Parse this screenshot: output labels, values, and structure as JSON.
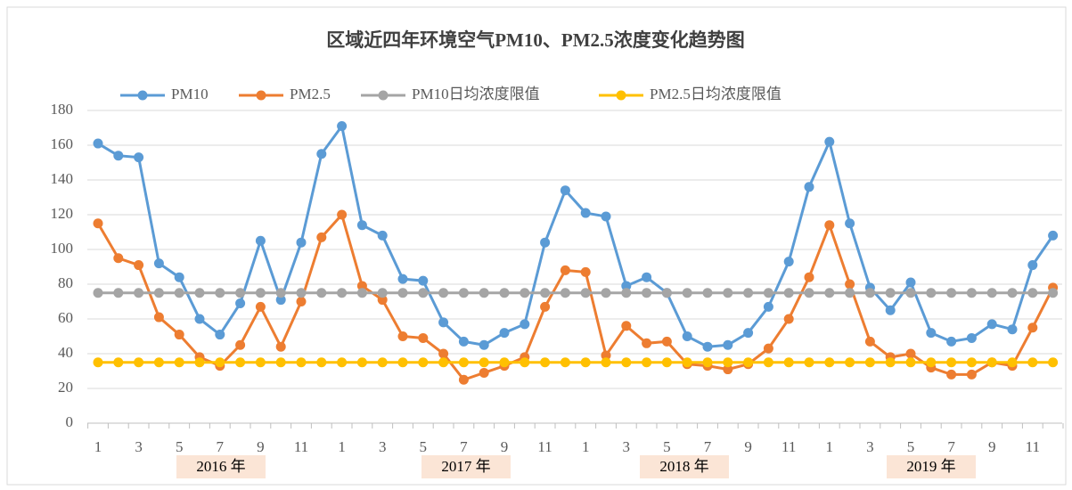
{
  "chart_data": {
    "type": "line",
    "title": "区域近四年环境空气PM10、PM2.5浓度变化趋势图",
    "categories": [
      "1",
      null,
      "3",
      null,
      "5",
      null,
      "7",
      null,
      "9",
      null,
      "11",
      null,
      "1",
      null,
      "3",
      null,
      "5",
      null,
      "7",
      null,
      "9",
      null,
      "11",
      null,
      "1",
      null,
      "3",
      null,
      "5",
      null,
      "7",
      null,
      "9",
      null,
      "11",
      null,
      "1",
      null,
      "3",
      null,
      "5",
      null,
      "7",
      null,
      "9",
      null,
      "11",
      null
    ],
    "year_labels": [
      "2016 年",
      "2017 年",
      "2018 年",
      "2019 年"
    ],
    "series": [
      {
        "name": "PM10",
        "color": "#5b9bd5",
        "values": [
          161,
          154,
          153,
          92,
          84,
          60,
          51,
          69,
          105,
          71,
          104,
          155,
          171,
          114,
          108,
          83,
          82,
          58,
          47,
          45,
          52,
          57,
          104,
          134,
          121,
          119,
          79,
          84,
          75,
          50,
          44,
          45,
          52,
          67,
          93,
          136,
          162,
          115,
          78,
          65,
          81,
          52,
          47,
          49,
          57,
          54,
          91,
          108
        ]
      },
      {
        "name": "PM2.5",
        "color": "#ed7d31",
        "values": [
          115,
          95,
          91,
          61,
          51,
          38,
          33,
          45,
          67,
          44,
          70,
          107,
          120,
          79,
          71,
          50,
          49,
          40,
          25,
          29,
          33,
          38,
          67,
          88,
          87,
          39,
          56,
          46,
          47,
          34,
          33,
          31,
          34,
          43,
          60,
          84,
          114,
          80,
          47,
          38,
          40,
          32,
          28,
          28,
          35,
          33,
          55,
          78
        ]
      },
      {
        "name": "PM10日均浓度限值",
        "color": "#a5a5a5",
        "values": [
          75,
          75,
          75,
          75,
          75,
          75,
          75,
          75,
          75,
          75,
          75,
          75,
          75,
          75,
          75,
          75,
          75,
          75,
          75,
          75,
          75,
          75,
          75,
          75,
          75,
          75,
          75,
          75,
          75,
          75,
          75,
          75,
          75,
          75,
          75,
          75,
          75,
          75,
          75,
          75,
          75,
          75,
          75,
          75,
          75,
          75,
          75,
          75
        ]
      },
      {
        "name": "PM2.5日均浓度限值",
        "color": "#ffc000",
        "values": [
          35,
          35,
          35,
          35,
          35,
          35,
          35,
          35,
          35,
          35,
          35,
          35,
          35,
          35,
          35,
          35,
          35,
          35,
          35,
          35,
          35,
          35,
          35,
          35,
          35,
          35,
          35,
          35,
          35,
          35,
          35,
          35,
          35,
          35,
          35,
          35,
          35,
          35,
          35,
          35,
          35,
          35,
          35,
          35,
          35,
          35,
          35,
          35
        ]
      }
    ],
    "ylim": [
      0,
      180
    ],
    "yticks": [
      0,
      20,
      40,
      60,
      80,
      100,
      120,
      140,
      160,
      180
    ],
    "grid": true,
    "legend": "top"
  }
}
